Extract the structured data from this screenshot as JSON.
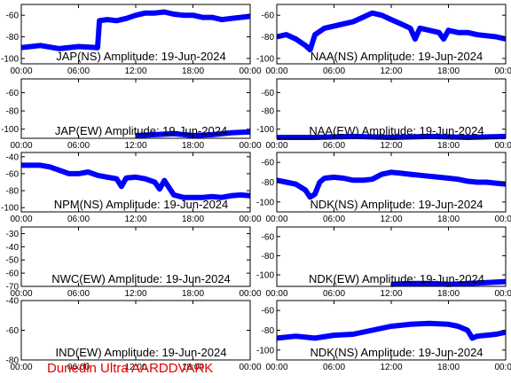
{
  "footer": "Dunedin Ultra AARDDVARK",
  "colors": {
    "trace": "#0000ff",
    "axes": "#000000",
    "footer": "#e00000"
  },
  "x_ticks": [
    "00:00",
    "06:00",
    "12:00",
    "18:00",
    "00:00"
  ],
  "chart_data": [
    {
      "type": "line",
      "title": "JAP(NS) Amplitude: 19-Jun-2024",
      "xlim": [
        0,
        24
      ],
      "ylim": [
        -105,
        -50
      ],
      "yticks": [
        -100,
        -80,
        -60
      ],
      "series": [
        {
          "x": [
            0,
            2,
            4,
            6,
            8,
            8.2,
            9,
            10,
            11,
            12,
            13,
            14,
            15,
            16,
            17,
            18,
            19,
            20,
            21,
            22,
            23,
            24
          ],
          "y": [
            -90,
            -88,
            -91,
            -89,
            -90,
            -65,
            -64,
            -65,
            -63,
            -60,
            -58,
            -58,
            -57,
            -59,
            -60,
            -60,
            -62,
            -62,
            -64,
            -63,
            -62,
            -61
          ]
        }
      ]
    },
    {
      "type": "line",
      "title": "NAA(NS) Amplitude: 19-Jun-2024",
      "xlim": [
        0,
        24
      ],
      "ylim": [
        -105,
        -50
      ],
      "yticks": [
        -100,
        -80,
        -60
      ],
      "series": [
        {
          "x": [
            0,
            1,
            2,
            3,
            3.5,
            4,
            5,
            6,
            7,
            8,
            9,
            10,
            11,
            12,
            13,
            14,
            14.5,
            15,
            16,
            17,
            17.5,
            18,
            19,
            20,
            21,
            22,
            23,
            24
          ],
          "y": [
            -80,
            -78,
            -82,
            -88,
            -92,
            -78,
            -72,
            -70,
            -68,
            -66,
            -62,
            -58,
            -60,
            -64,
            -68,
            -72,
            -82,
            -72,
            -74,
            -76,
            -82,
            -74,
            -76,
            -76,
            -78,
            -79,
            -80,
            -82
          ]
        }
      ]
    },
    {
      "type": "line",
      "title": "JAP(EW) Amplitude: 19-Jun-2024",
      "xlim": [
        0,
        24
      ],
      "ylim": [
        -110,
        -45
      ],
      "yticks": [
        -100,
        -80,
        -60
      ],
      "series": [
        {
          "x": [
            12,
            14,
            16,
            18,
            20,
            22,
            24
          ],
          "y": [
            -107,
            -106,
            -105,
            -107,
            -106,
            -104,
            -103
          ]
        }
      ]
    },
    {
      "type": "line",
      "title": "NAA(EW) Amplitude: 19-Jun-2024",
      "xlim": [
        0,
        24
      ],
      "ylim": [
        -110,
        -45
      ],
      "yticks": [
        -100,
        -80,
        -60
      ],
      "series": [
        {
          "x": [
            0,
            4,
            8,
            12,
            16,
            20,
            24
          ],
          "y": [
            -109,
            -109,
            -108,
            -109,
            -108,
            -109,
            -108
          ]
        }
      ]
    },
    {
      "type": "line",
      "title": "NPM(NS) Amplitude: 19-Jun-2024",
      "xlim": [
        0,
        24
      ],
      "ylim": [
        -105,
        -35
      ],
      "yticks": [
        -100,
        -80,
        -60,
        -40
      ],
      "series": [
        {
          "x": [
            0,
            1,
            2,
            3,
            4,
            5,
            6,
            7,
            8,
            9,
            10,
            10.5,
            11,
            12,
            13,
            14,
            14.5,
            15,
            16,
            17,
            18,
            19,
            20,
            21,
            22,
            23,
            24
          ],
          "y": [
            -50,
            -50,
            -50,
            -52,
            -56,
            -60,
            -60,
            -58,
            -62,
            -64,
            -66,
            -75,
            -65,
            -64,
            -66,
            -70,
            -78,
            -68,
            -85,
            -88,
            -88,
            -88,
            -87,
            -88,
            -86,
            -85,
            -86
          ]
        }
      ]
    },
    {
      "type": "line",
      "title": "NDK(NS) Amplitude: 19-Jun-2024",
      "xlim": [
        0,
        24
      ],
      "ylim": [
        -110,
        -50
      ],
      "yticks": [
        -100,
        -80,
        -60
      ],
      "series": [
        {
          "x": [
            0,
            1,
            2,
            3,
            3.5,
            4,
            4.5,
            5,
            6,
            7,
            8,
            9,
            10,
            11,
            12,
            13,
            14,
            15,
            16,
            17,
            18,
            19,
            20,
            21,
            22,
            23,
            24
          ],
          "y": [
            -78,
            -80,
            -82,
            -88,
            -95,
            -92,
            -80,
            -76,
            -75,
            -76,
            -78,
            -78,
            -77,
            -72,
            -70,
            -71,
            -72,
            -73,
            -74,
            -75,
            -76,
            -77,
            -79,
            -80,
            -80,
            -81,
            -82
          ]
        }
      ]
    },
    {
      "type": "line",
      "title": "NWC(EW) Amplitude: 19-Jun-2024",
      "xlim": [
        0,
        24
      ],
      "ylim": [
        -70,
        -25
      ],
      "yticks": [
        -70,
        -60,
        -50,
        -40,
        -30
      ],
      "series": []
    },
    {
      "type": "line",
      "title": "NDK(EW) Amplitude: 19-Jun-2024",
      "xlim": [
        0,
        24
      ],
      "ylim": [
        -112,
        -50
      ],
      "yticks": [
        -100,
        -80,
        -60
      ],
      "series": [
        {
          "x": [
            12,
            14,
            16,
            18,
            20,
            22,
            24
          ],
          "y": [
            -110,
            -109,
            -109,
            -110,
            -109,
            -108,
            -107
          ]
        }
      ]
    },
    {
      "type": "line",
      "title": "IND(EW) Amplitude: 19-Jun-2024",
      "xlim": [
        0,
        24
      ],
      "ylim": [
        -80,
        -40
      ],
      "yticks": [
        -80,
        -60,
        -40
      ],
      "series": []
    },
    {
      "type": "line",
      "title": "NDK(NS) Amplitude: 19-Jun-2024",
      "xlim": [
        0,
        24
      ],
      "ylim": [
        -110,
        -50
      ],
      "yticks": [
        -100,
        -80,
        -60
      ],
      "series": [
        {
          "x": [
            0,
            2,
            4,
            6,
            8,
            10,
            12,
            14,
            16,
            18,
            19,
            20,
            20.5,
            21,
            22,
            23,
            24
          ],
          "y": [
            -88,
            -86,
            -88,
            -85,
            -84,
            -80,
            -76,
            -74,
            -73,
            -74,
            -76,
            -80,
            -88,
            -86,
            -85,
            -84,
            -82
          ]
        }
      ]
    }
  ]
}
